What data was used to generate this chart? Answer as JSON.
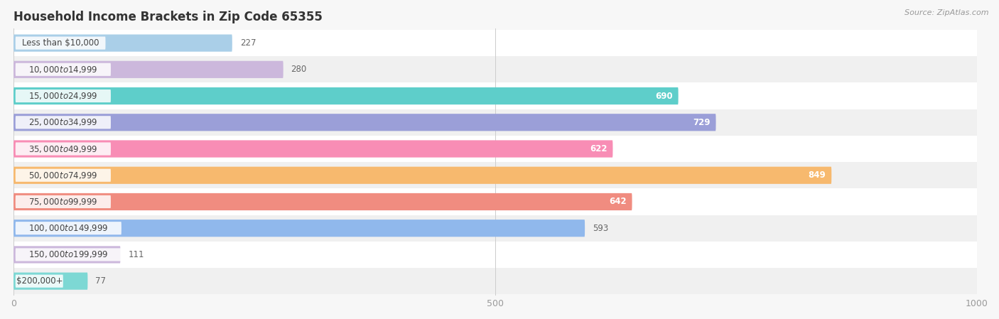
{
  "title": "Household Income Brackets in Zip Code 65355",
  "source": "Source: ZipAtlas.com",
  "categories": [
    "Less than $10,000",
    "$10,000 to $14,999",
    "$15,000 to $24,999",
    "$25,000 to $34,999",
    "$35,000 to $49,999",
    "$50,000 to $74,999",
    "$75,000 to $99,999",
    "$100,000 to $149,999",
    "$150,000 to $199,999",
    "$200,000+"
  ],
  "values": [
    227,
    280,
    690,
    729,
    622,
    849,
    642,
    593,
    111,
    77
  ],
  "bar_colors": [
    "#aacfe8",
    "#ccb8dc",
    "#5ececa",
    "#9b9fd8",
    "#f88db5",
    "#f7b96e",
    "#f08c80",
    "#90b8ec",
    "#ccb8dc",
    "#7dd8d4"
  ],
  "label_colors": [
    "#555555",
    "#555555",
    "#ffffff",
    "#ffffff",
    "#ffffff",
    "#ffffff",
    "#ffffff",
    "#555555",
    "#555555",
    "#555555"
  ],
  "xlim": [
    0,
    1000
  ],
  "xticks": [
    0,
    500,
    1000
  ],
  "row_colors": [
    "#ffffff",
    "#f0f0f0"
  ],
  "background_color": "#f7f7f7",
  "title_fontsize": 12,
  "label_fontsize": 8.5,
  "value_fontsize": 8.5,
  "bar_height": 0.65
}
